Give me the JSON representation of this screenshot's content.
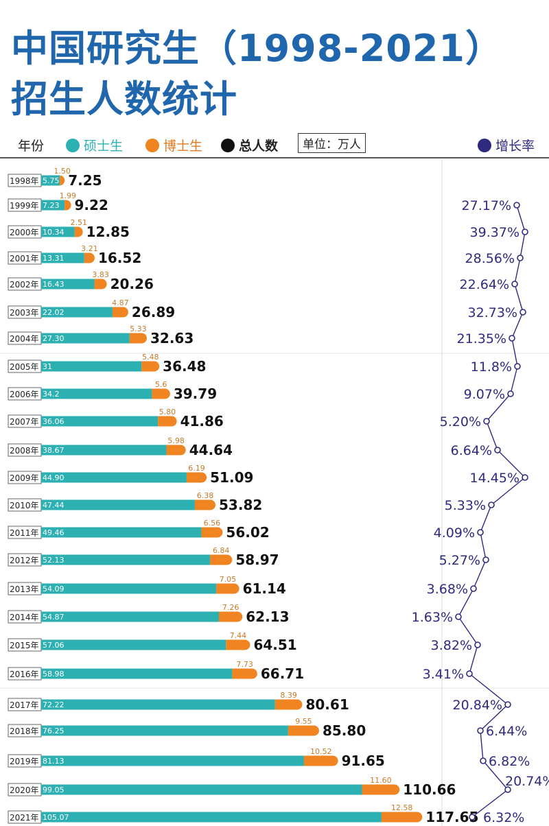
{
  "title": {
    "line1": "中国研究生（1998-2021）",
    "line2": "招生人数统计"
  },
  "legend": {
    "year": "年份",
    "master": "硕士生",
    "phd": "博士生",
    "total": "总人数",
    "unit": "单位：万人",
    "rate": "增长率"
  },
  "colors": {
    "title": "#1f66ad",
    "master": "#2db0b2",
    "phd": "#f08420",
    "total": "#111111",
    "rate": "#2d2a80"
  },
  "chart_data": {
    "type": "bar",
    "stacked": true,
    "orientation": "horizontal",
    "unit": "万人",
    "categories": [
      "1998年",
      "1999年",
      "2000年",
      "2001年",
      "2002年",
      "2003年",
      "2004年",
      "2005年",
      "2006年",
      "2007年",
      "2008年",
      "2009年",
      "2010年",
      "2011年",
      "2012年",
      "2013年",
      "2014年",
      "2015年",
      "2016年",
      "2017年",
      "2018年",
      "2019年",
      "2020年",
      "2021年"
    ],
    "series": [
      {
        "name": "硕士生",
        "labels": [
          "5.75",
          "7.23",
          "10.34",
          "13.31",
          "16.43",
          "22.02",
          "27.30",
          "31",
          "34.2",
          "36.06",
          "38.67",
          "44.90",
          "47.44",
          "49.46",
          "52.13",
          "54.09",
          "54.87",
          "57.06",
          "58.98",
          "72.22",
          "76.25",
          "81.13",
          "99.05",
          "105.07"
        ]
      },
      {
        "name": "博士生",
        "labels": [
          "1.50",
          "1.99",
          "2.51",
          "3.21",
          "3.83",
          "4.87",
          "5.33",
          "5.48",
          "5.6",
          "5.80",
          "5.98",
          "6.19",
          "6.38",
          "6.56",
          "6.84",
          "7.05",
          "7.26",
          "7.44",
          "7.73",
          "8.39",
          "9.55",
          "10.52",
          "11.60",
          "12.58"
        ]
      }
    ],
    "totals": {
      "name": "总人数",
      "labels": [
        "7.25",
        "9.22",
        "12.85",
        "16.52",
        "20.26",
        "26.89",
        "32.63",
        "36.48",
        "39.79",
        "41.86",
        "44.64",
        "51.09",
        "53.82",
        "56.02",
        "58.97",
        "61.14",
        "62.13",
        "64.51",
        "66.71",
        "80.61",
        "85.80",
        "91.65",
        "110.66",
        "117.65"
      ]
    },
    "growth_rate": {
      "name": "增长率",
      "type": "line",
      "labels": [
        null,
        "27.17%",
        "39.37%",
        "28.56%",
        "22.64%",
        "32.73%",
        "21.35%",
        "11.8%",
        "9.07%",
        "5.20%",
        "6.64%",
        "14.45%",
        "5.33%",
        "4.09%",
        "5.27%",
        "3.68%",
        "1.63%",
        "3.82%",
        "3.41%",
        "20.84%",
        "6.44%",
        "6.82%",
        "20.74%",
        "6.32%"
      ]
    }
  }
}
